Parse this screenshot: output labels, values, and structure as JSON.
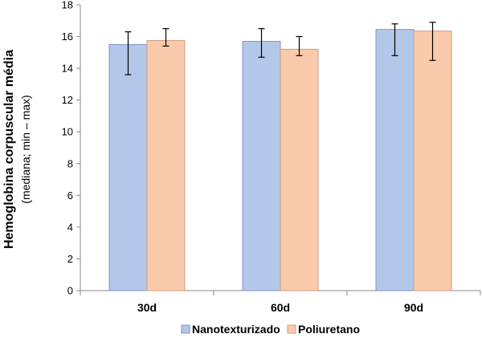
{
  "chart_data": {
    "type": "bar",
    "categories": [
      "30d",
      "60d",
      "90d"
    ],
    "series": [
      {
        "name": "Nanotexturizado",
        "color": "#b3c7e8",
        "stroke": "#7f96c5",
        "values": [
          15.5,
          15.7,
          16.45
        ],
        "err_min": [
          13.6,
          14.7,
          14.8
        ],
        "err_max": [
          16.3,
          16.5,
          16.8
        ]
      },
      {
        "name": "Poliuretano",
        "color": "#f9cbac",
        "stroke": "#d99a7a",
        "values": [
          15.75,
          15.2,
          16.35
        ],
        "err_min": [
          15.4,
          14.8,
          14.5
        ],
        "err_max": [
          16.5,
          16.0,
          16.9
        ]
      }
    ],
    "ylabel": "Hemoglobina corpuscular média",
    "ylabel_sub": "(mediana; min – max)",
    "xlabel": "",
    "ylim": [
      0,
      18
    ],
    "yticks": [
      0,
      2,
      4,
      6,
      8,
      10,
      12,
      14,
      16,
      18
    ],
    "grid": false,
    "legend": "bottom"
  }
}
